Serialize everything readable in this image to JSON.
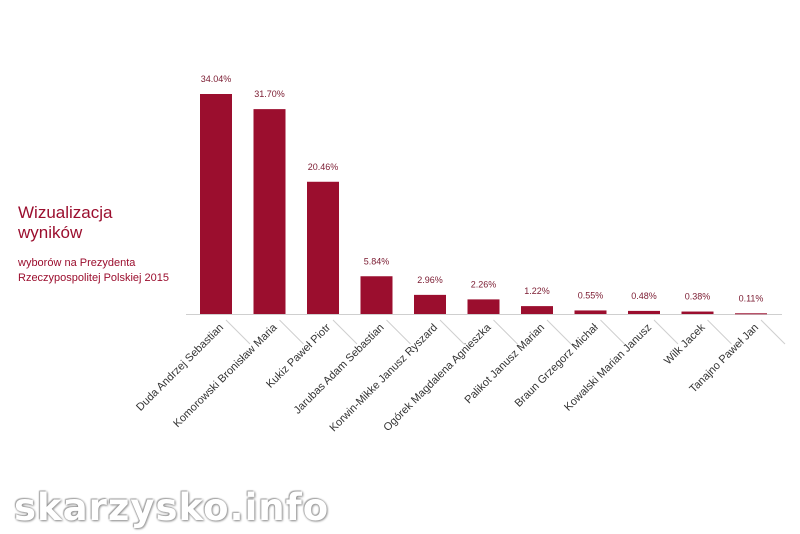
{
  "header": {
    "title": "Wizualizacja wyników",
    "subtitle": "wyborów na Prezydenta Rzeczypospolitej Polskiej 2015"
  },
  "watermark": "skarzysko.info",
  "colors": {
    "bar": "#9b0e2e",
    "label": "#7a1a30",
    "axis": "#cfcfcf",
    "text": "#333333"
  },
  "chart_data": {
    "type": "bar",
    "title": "",
    "xlabel": "",
    "ylabel": "",
    "ylim": [
      0,
      34.04
    ],
    "grid": false,
    "legend": "none",
    "categories": [
      "Duda Andrzej Sebastian",
      "Komorowski Bronisław Maria",
      "Kukiz Paweł Piotr",
      "Jarubas Adam Sebastian",
      "Korwin-Mikke Janusz Ryszard",
      "Ogórek Magdalena Agnieszka",
      "Palikot Janusz Marian",
      "Braun Grzegorz Michał",
      "Kowalski Marian Janusz",
      "Wilk Jacek",
      "Tanajno Paweł Jan"
    ],
    "values": [
      34.04,
      31.7,
      20.46,
      5.84,
      2.96,
      2.26,
      1.22,
      0.55,
      0.48,
      0.38,
      0.11
    ],
    "value_labels": [
      "34.04%",
      "31.70%",
      "20.46%",
      "5.84%",
      "2.96%",
      "2.26%",
      "1.22%",
      "0.55%",
      "0.48%",
      "0.38%",
      "0.11%"
    ]
  }
}
